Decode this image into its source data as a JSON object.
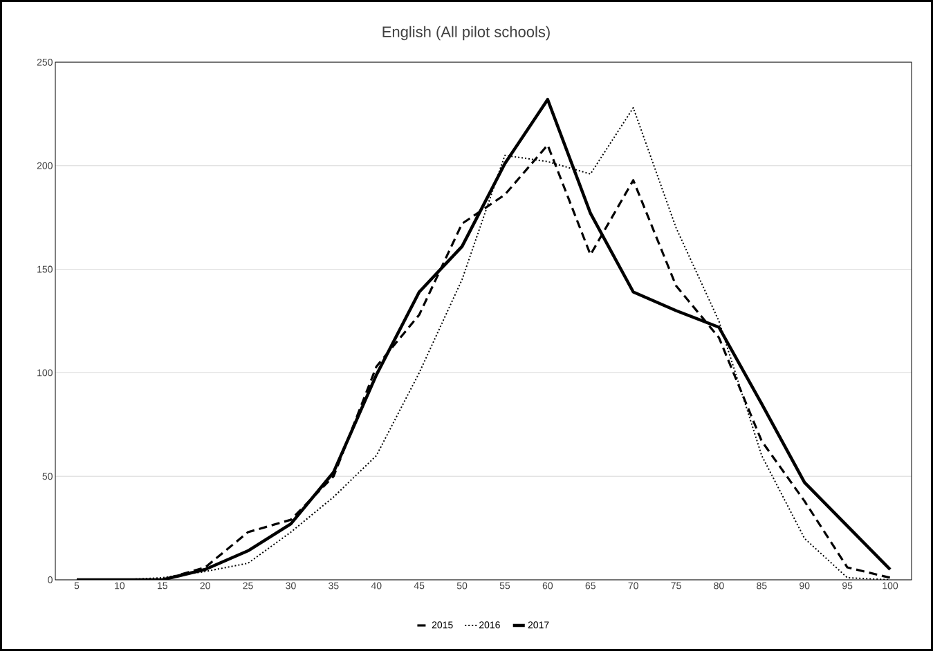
{
  "chart_data": {
    "type": "line",
    "title": "English (All pilot schools)",
    "categories": [
      "5",
      "10",
      "15",
      "20",
      "25",
      "30",
      "35",
      "40",
      "45",
      "50",
      "55",
      "60",
      "65",
      "70",
      "75",
      "80",
      "85",
      "90",
      "95",
      "100"
    ],
    "series": [
      {
        "name": "2015",
        "color": "#000000",
        "line_style": "dashed",
        "values": [
          0,
          0,
          0,
          6,
          23,
          29,
          50,
          103,
          128,
          172,
          186,
          210,
          157,
          193,
          142,
          117,
          67,
          38,
          6,
          1
        ]
      },
      {
        "name": "2016",
        "color": "#000000",
        "line_style": "dotted",
        "values": [
          0,
          0,
          1,
          4,
          8,
          23,
          40,
          60,
          100,
          145,
          205,
          202,
          196,
          228,
          170,
          125,
          60,
          20,
          1,
          0
        ]
      },
      {
        "name": "2017",
        "color": "#000000",
        "line_style": "solid",
        "values": [
          0,
          0,
          0,
          5,
          14,
          27,
          52,
          99,
          139,
          161,
          201,
          232,
          177,
          139,
          130,
          122,
          85,
          47,
          26,
          5
        ]
      }
    ],
    "ylim": [
      0,
      250
    ],
    "yticks": [
      0,
      50,
      100,
      150,
      200,
      250
    ],
    "grid": "y",
    "legend": "bottom"
  }
}
